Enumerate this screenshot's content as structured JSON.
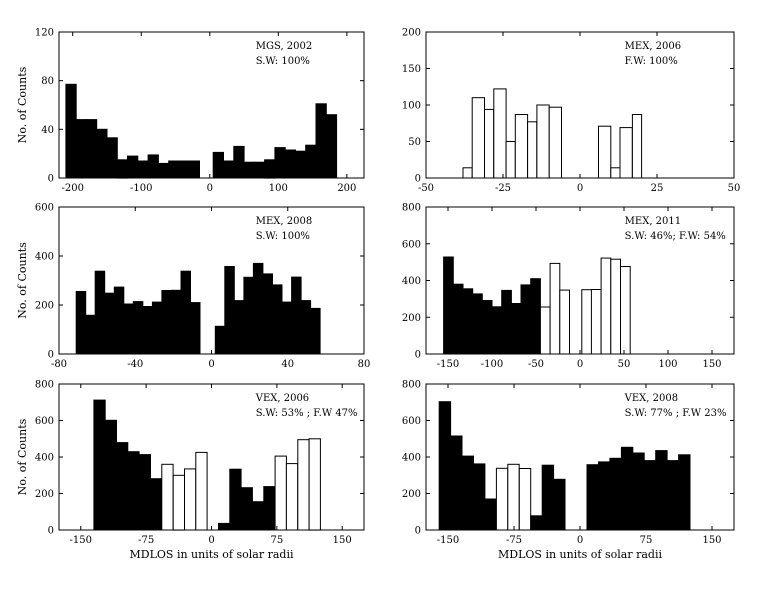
{
  "figure": {
    "ylabel": "No. of Counts",
    "xlabel": "MDLOS in units of solar radii"
  },
  "chart_data": [
    {
      "id": "mgs-2002",
      "type": "bar",
      "annotation": [
        "MGS, 2002",
        "S.W: 100%"
      ],
      "xlim": [
        -220,
        225
      ],
      "xticks": [
        -200,
        -100,
        0,
        100,
        200
      ],
      "ylim": [
        0,
        120
      ],
      "yticks": [
        0,
        40,
        80,
        120
      ],
      "show_ylabel": true,
      "show_xlabel": false,
      "bars": [
        {
          "x0": -210,
          "x1": -195,
          "value": 77,
          "wind": "slow"
        },
        {
          "x0": -195,
          "x1": -180,
          "value": 48,
          "wind": "slow"
        },
        {
          "x0": -180,
          "x1": -165,
          "value": 48,
          "wind": "slow"
        },
        {
          "x0": -165,
          "x1": -150,
          "value": 40,
          "wind": "slow"
        },
        {
          "x0": -150,
          "x1": -135,
          "value": 33,
          "wind": "slow"
        },
        {
          "x0": -135,
          "x1": -120,
          "value": 15,
          "wind": "slow"
        },
        {
          "x0": -120,
          "x1": -105,
          "value": 18,
          "wind": "slow"
        },
        {
          "x0": -105,
          "x1": -90,
          "value": 14,
          "wind": "slow"
        },
        {
          "x0": -90,
          "x1": -75,
          "value": 19,
          "wind": "slow"
        },
        {
          "x0": -75,
          "x1": -60,
          "value": 12,
          "wind": "slow"
        },
        {
          "x0": -60,
          "x1": -45,
          "value": 14,
          "wind": "slow"
        },
        {
          "x0": -45,
          "x1": -30,
          "value": 14,
          "wind": "slow"
        },
        {
          "x0": -30,
          "x1": -15,
          "value": 14,
          "wind": "slow"
        },
        {
          "x0": 5,
          "x1": 20,
          "value": 21,
          "wind": "slow"
        },
        {
          "x0": 20,
          "x1": 35,
          "value": 14,
          "wind": "slow"
        },
        {
          "x0": 35,
          "x1": 50,
          "value": 26,
          "wind": "slow"
        },
        {
          "x0": 50,
          "x1": 65,
          "value": 13,
          "wind": "slow"
        },
        {
          "x0": 65,
          "x1": 80,
          "value": 13,
          "wind": "slow"
        },
        {
          "x0": 80,
          "x1": 95,
          "value": 15,
          "wind": "slow"
        },
        {
          "x0": 95,
          "x1": 110,
          "value": 25,
          "wind": "slow"
        },
        {
          "x0": 110,
          "x1": 125,
          "value": 23,
          "wind": "slow"
        },
        {
          "x0": 125,
          "x1": 140,
          "value": 22,
          "wind": "slow"
        },
        {
          "x0": 140,
          "x1": 155,
          "value": 27,
          "wind": "slow"
        },
        {
          "x0": 155,
          "x1": 170,
          "value": 61,
          "wind": "slow"
        },
        {
          "x0": 170,
          "x1": 185,
          "value": 52,
          "wind": "slow"
        }
      ]
    },
    {
      "id": "mex-2006",
      "type": "bar",
      "annotation": [
        "MEX, 2006",
        "F.W: 100%"
      ],
      "xlim": [
        -50,
        50
      ],
      "xticks": [
        -50,
        -25,
        0,
        25,
        50
      ],
      "ylim": [
        0,
        200
      ],
      "yticks": [
        0,
        50,
        100,
        150,
        200
      ],
      "show_ylabel": false,
      "show_xlabel": false,
      "bars": [
        {
          "x0": -38,
          "x1": -35,
          "value": 14,
          "wind": "fast"
        },
        {
          "x0": -35,
          "x1": -31,
          "value": 110,
          "wind": "fast"
        },
        {
          "x0": -31,
          "x1": -28,
          "value": 94,
          "wind": "fast"
        },
        {
          "x0": -28,
          "x1": -24,
          "value": 122,
          "wind": "fast"
        },
        {
          "x0": -24,
          "x1": -21,
          "value": 50,
          "wind": "fast"
        },
        {
          "x0": -21,
          "x1": -17,
          "value": 87,
          "wind": "fast"
        },
        {
          "x0": -17,
          "x1": -14,
          "value": 77,
          "wind": "fast"
        },
        {
          "x0": -14,
          "x1": -10,
          "value": 100,
          "wind": "fast"
        },
        {
          "x0": -10,
          "x1": -6,
          "value": 97,
          "wind": "fast"
        },
        {
          "x0": 6,
          "x1": 10,
          "value": 71,
          "wind": "fast"
        },
        {
          "x0": 10,
          "x1": 13,
          "value": 14,
          "wind": "fast"
        },
        {
          "x0": 13,
          "x1": 17,
          "value": 69,
          "wind": "fast"
        },
        {
          "x0": 17,
          "x1": 20,
          "value": 87,
          "wind": "fast"
        }
      ]
    },
    {
      "id": "mex-2008",
      "type": "bar",
      "annotation": [
        "MEX, 2008",
        "S.W: 100%"
      ],
      "xlim": [
        -80,
        80
      ],
      "xticks": [
        -80,
        -40,
        0,
        40,
        80
      ],
      "ylim": [
        0,
        600
      ],
      "yticks": [
        0,
        200,
        400,
        600
      ],
      "show_ylabel": true,
      "show_xlabel": false,
      "bars": [
        {
          "x0": -71,
          "x1": -66,
          "value": 255,
          "wind": "slow"
        },
        {
          "x0": -66,
          "x1": -61,
          "value": 158,
          "wind": "slow"
        },
        {
          "x0": -61,
          "x1": -56,
          "value": 338,
          "wind": "slow"
        },
        {
          "x0": -56,
          "x1": -51,
          "value": 248,
          "wind": "slow"
        },
        {
          "x0": -51,
          "x1": -46,
          "value": 273,
          "wind": "slow"
        },
        {
          "x0": -46,
          "x1": -41,
          "value": 204,
          "wind": "slow"
        },
        {
          "x0": -41,
          "x1": -36,
          "value": 214,
          "wind": "slow"
        },
        {
          "x0": -36,
          "x1": -31,
          "value": 194,
          "wind": "slow"
        },
        {
          "x0": -31,
          "x1": -26,
          "value": 212,
          "wind": "slow"
        },
        {
          "x0": -26,
          "x1": -21,
          "value": 259,
          "wind": "slow"
        },
        {
          "x0": -21,
          "x1": -16,
          "value": 260,
          "wind": "slow"
        },
        {
          "x0": -16,
          "x1": -11,
          "value": 338,
          "wind": "slow"
        },
        {
          "x0": -11,
          "x1": -6,
          "value": 210,
          "wind": "slow"
        },
        {
          "x0": 2,
          "x1": 7,
          "value": 113,
          "wind": "slow"
        },
        {
          "x0": 7,
          "x1": 12,
          "value": 357,
          "wind": "slow"
        },
        {
          "x0": 12,
          "x1": 17,
          "value": 218,
          "wind": "slow"
        },
        {
          "x0": 17,
          "x1": 22,
          "value": 313,
          "wind": "slow"
        },
        {
          "x0": 22,
          "x1": 27,
          "value": 370,
          "wind": "slow"
        },
        {
          "x0": 27,
          "x1": 32,
          "value": 327,
          "wind": "slow"
        },
        {
          "x0": 32,
          "x1": 37,
          "value": 282,
          "wind": "slow"
        },
        {
          "x0": 37,
          "x1": 42,
          "value": 212,
          "wind": "slow"
        },
        {
          "x0": 42,
          "x1": 47,
          "value": 314,
          "wind": "slow"
        },
        {
          "x0": 47,
          "x1": 52,
          "value": 218,
          "wind": "slow"
        },
        {
          "x0": 52,
          "x1": 57,
          "value": 186,
          "wind": "slow"
        }
      ]
    },
    {
      "id": "mex-2011",
      "type": "bar",
      "annotation": [
        "MEX, 2011",
        "S.W: 46%; F.W: 54%"
      ],
      "xlim": [
        -175,
        175
      ],
      "xticks": [
        -150,
        -100,
        -50,
        0,
        50,
        100,
        150
      ],
      "ylim": [
        0,
        800
      ],
      "yticks": [
        0,
        200,
        400,
        600,
        800
      ],
      "show_ylabel": false,
      "show_xlabel": false,
      "bars": [
        {
          "x0": -155,
          "x1": -144,
          "value": 528,
          "wind": "slow"
        },
        {
          "x0": -144,
          "x1": -133,
          "value": 380,
          "wind": "slow"
        },
        {
          "x0": -133,
          "x1": -122,
          "value": 355,
          "wind": "slow"
        },
        {
          "x0": -122,
          "x1": -111,
          "value": 327,
          "wind": "slow"
        },
        {
          "x0": -111,
          "x1": -100,
          "value": 291,
          "wind": "slow"
        },
        {
          "x0": -100,
          "x1": -89,
          "value": 257,
          "wind": "slow"
        },
        {
          "x0": -89,
          "x1": -78,
          "value": 346,
          "wind": "slow"
        },
        {
          "x0": -78,
          "x1": -67,
          "value": 275,
          "wind": "slow"
        },
        {
          "x0": -67,
          "x1": -56,
          "value": 376,
          "wind": "slow"
        },
        {
          "x0": -56,
          "x1": -45,
          "value": 410,
          "wind": "slow"
        },
        {
          "x0": -45,
          "x1": -34,
          "value": 256,
          "wind": "fast"
        },
        {
          "x0": -34,
          "x1": -23,
          "value": 493,
          "wind": "fast"
        },
        {
          "x0": -23,
          "x1": -12,
          "value": 348,
          "wind": "fast"
        },
        {
          "x0": 2,
          "x1": 13,
          "value": 350,
          "wind": "fast"
        },
        {
          "x0": 13,
          "x1": 24,
          "value": 351,
          "wind": "fast"
        },
        {
          "x0": 24,
          "x1": 35,
          "value": 522,
          "wind": "fast"
        },
        {
          "x0": 35,
          "x1": 46,
          "value": 516,
          "wind": "fast"
        },
        {
          "x0": 46,
          "x1": 57,
          "value": 476,
          "wind": "fast"
        }
      ]
    },
    {
      "id": "vex-2006",
      "type": "bar",
      "annotation": [
        "VEX, 2006",
        "S.W: 53% ; F.W 47%"
      ],
      "xlim": [
        -175,
        175
      ],
      "xticks": [
        -150,
        -75,
        0,
        75,
        150
      ],
      "ylim": [
        0,
        800
      ],
      "yticks": [
        0,
        200,
        400,
        600,
        800
      ],
      "show_ylabel": true,
      "show_xlabel": true,
      "bars": [
        {
          "x0": -135,
          "x1": -122,
          "value": 712,
          "wind": "slow"
        },
        {
          "x0": -122,
          "x1": -109,
          "value": 601,
          "wind": "slow"
        },
        {
          "x0": -109,
          "x1": -96,
          "value": 479,
          "wind": "slow"
        },
        {
          "x0": -96,
          "x1": -83,
          "value": 429,
          "wind": "slow"
        },
        {
          "x0": -83,
          "x1": -70,
          "value": 413,
          "wind": "slow"
        },
        {
          "x0": -70,
          "x1": -57,
          "value": 281,
          "wind": "slow"
        },
        {
          "x0": -57,
          "x1": -44,
          "value": 360,
          "wind": "fast"
        },
        {
          "x0": -44,
          "x1": -31,
          "value": 300,
          "wind": "fast"
        },
        {
          "x0": -31,
          "x1": -18,
          "value": 335,
          "wind": "fast"
        },
        {
          "x0": -18,
          "x1": -5,
          "value": 425,
          "wind": "fast"
        },
        {
          "x0": 8,
          "x1": 21,
          "value": 36,
          "wind": "slow"
        },
        {
          "x0": 21,
          "x1": 34,
          "value": 333,
          "wind": "slow"
        },
        {
          "x0": 34,
          "x1": 47,
          "value": 232,
          "wind": "slow"
        },
        {
          "x0": 47,
          "x1": 60,
          "value": 155,
          "wind": "slow"
        },
        {
          "x0": 60,
          "x1": 73,
          "value": 238,
          "wind": "slow"
        },
        {
          "x0": 73,
          "x1": 86,
          "value": 405,
          "wind": "fast"
        },
        {
          "x0": 86,
          "x1": 99,
          "value": 364,
          "wind": "fast"
        },
        {
          "x0": 99,
          "x1": 112,
          "value": 495,
          "wind": "fast"
        },
        {
          "x0": 112,
          "x1": 125,
          "value": 500,
          "wind": "fast"
        }
      ]
    },
    {
      "id": "vex-2008",
      "type": "bar",
      "annotation": [
        "VEX, 2008",
        "S.W: 77% ; F.W 23%"
      ],
      "xlim": [
        -175,
        175
      ],
      "xticks": [
        -150,
        -75,
        0,
        75,
        150
      ],
      "ylim": [
        0,
        800
      ],
      "yticks": [
        0,
        200,
        400,
        600,
        800
      ],
      "show_ylabel": false,
      "show_xlabel": true,
      "bars": [
        {
          "x0": -160,
          "x1": -147,
          "value": 703,
          "wind": "slow"
        },
        {
          "x0": -147,
          "x1": -134,
          "value": 515,
          "wind": "slow"
        },
        {
          "x0": -134,
          "x1": -121,
          "value": 405,
          "wind": "slow"
        },
        {
          "x0": -121,
          "x1": -108,
          "value": 362,
          "wind": "slow"
        },
        {
          "x0": -108,
          "x1": -95,
          "value": 170,
          "wind": "slow"
        },
        {
          "x0": -95,
          "x1": -82,
          "value": 338,
          "wind": "fast"
        },
        {
          "x0": -82,
          "x1": -69,
          "value": 360,
          "wind": "fast"
        },
        {
          "x0": -69,
          "x1": -56,
          "value": 337,
          "wind": "fast"
        },
        {
          "x0": -56,
          "x1": -43,
          "value": 78,
          "wind": "slow"
        },
        {
          "x0": -43,
          "x1": -30,
          "value": 355,
          "wind": "slow"
        },
        {
          "x0": -30,
          "x1": -17,
          "value": 278,
          "wind": "slow"
        },
        {
          "x0": 8,
          "x1": 21,
          "value": 358,
          "wind": "slow"
        },
        {
          "x0": 21,
          "x1": 34,
          "value": 373,
          "wind": "slow"
        },
        {
          "x0": 34,
          "x1": 47,
          "value": 393,
          "wind": "slow"
        },
        {
          "x0": 47,
          "x1": 60,
          "value": 453,
          "wind": "slow"
        },
        {
          "x0": 60,
          "x1": 73,
          "value": 422,
          "wind": "slow"
        },
        {
          "x0": 73,
          "x1": 86,
          "value": 380,
          "wind": "slow"
        },
        {
          "x0": 86,
          "x1": 99,
          "value": 435,
          "wind": "slow"
        },
        {
          "x0": 99,
          "x1": 112,
          "value": 380,
          "wind": "slow"
        },
        {
          "x0": 112,
          "x1": 125,
          "value": 412,
          "wind": "slow"
        }
      ]
    }
  ]
}
